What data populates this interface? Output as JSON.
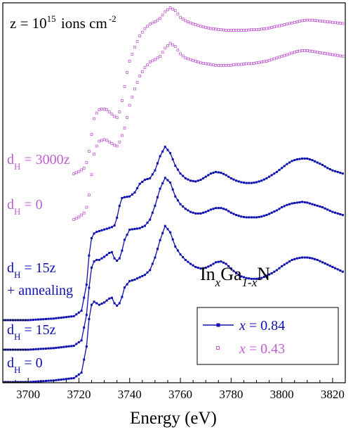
{
  "chart_data": {
    "type": "line",
    "title": "",
    "xlabel": "Energy (eV)",
    "ylabel": "",
    "xlim": [
      3690,
      3825
    ],
    "x_ticks": [
      "3700",
      "3720",
      "3740",
      "3760",
      "3780",
      "3800",
      "3820"
    ],
    "grid": false,
    "annotations": {
      "fluence": {
        "z": "z = 10",
        "exp": "15",
        "unit": " ions cm",
        "unit_exp": "-2"
      },
      "formula": {
        "a": "In",
        "sa": "x",
        "b": "Ga",
        "sb": "1-x",
        "c": "N"
      },
      "labels": [
        {
          "key": "dH3000",
          "pre": "d",
          "sub": "H",
          "post": " = 3000z"
        },
        {
          "key": "dH0b",
          "pre": "d",
          "sub": "H",
          "post": " = 0"
        },
        {
          "key": "dH15a",
          "pre": "d",
          "sub": "H",
          "post": " = 15z"
        },
        {
          "key": "anneal",
          "text": "+ annealing"
        },
        {
          "key": "dH15",
          "pre": "d",
          "sub": "H",
          "post": " = 15z"
        },
        {
          "key": "dH0",
          "pre": "d",
          "sub": "H",
          "post": " = 0"
        }
      ]
    },
    "legend": {
      "placement": "bottom-right",
      "entries": [
        {
          "name": "x = 0.84",
          "var": "x",
          "rest": " = 0.84",
          "color": "#1010b0",
          "marker": "line-square"
        },
        {
          "name": "x = 0.43",
          "var": "x",
          "rest": " = 0.43",
          "color": "#c060d0",
          "marker": "open-square"
        }
      ]
    },
    "series": [
      {
        "name": "dH = 0 (x = 0.84)",
        "color": "#1010b0",
        "group": "x = 0.84",
        "x": [
          3690,
          3700,
          3710,
          3718,
          3721,
          3723,
          3724,
          3725,
          3726,
          3727,
          3728,
          3730,
          3732,
          3733,
          3734,
          3735,
          3736,
          3737,
          3738,
          3740,
          3742,
          3744,
          3746,
          3748,
          3750,
          3752,
          3754,
          3756,
          3758,
          3760,
          3762,
          3764,
          3766,
          3768,
          3770,
          3772,
          3774,
          3776,
          3778,
          3780,
          3782,
          3784,
          3786,
          3788,
          3790,
          3792,
          3794,
          3796,
          3798,
          3800,
          3802,
          3804,
          3806,
          3808,
          3810,
          3812,
          3814,
          3816,
          3818,
          3820,
          3822,
          3824
        ],
        "y": [
          0.0,
          0.0,
          0.02,
          0.05,
          0.12,
          0.45,
          0.8,
          0.98,
          1.02,
          1.0,
          0.98,
          1.01,
          1.06,
          1.07,
          1.0,
          0.97,
          1.0,
          1.08,
          1.2,
          1.28,
          1.3,
          1.33,
          1.36,
          1.42,
          1.58,
          1.8,
          1.98,
          1.9,
          1.72,
          1.62,
          1.55,
          1.5,
          1.46,
          1.44,
          1.45,
          1.48,
          1.52,
          1.53,
          1.5,
          1.44,
          1.38,
          1.34,
          1.32,
          1.31,
          1.31,
          1.32,
          1.35,
          1.38,
          1.42,
          1.47,
          1.51,
          1.55,
          1.57,
          1.58,
          1.58,
          1.57,
          1.55,
          1.52,
          1.49,
          1.46,
          1.43,
          1.4
        ]
      },
      {
        "name": "dH = 15z (x = 0.84)",
        "color": "#1010b0",
        "group": "x = 0.84",
        "x": [
          3690,
          3700,
          3710,
          3718,
          3721,
          3723,
          3724,
          3725,
          3726,
          3727,
          3728,
          3730,
          3732,
          3733,
          3734,
          3735,
          3736,
          3737,
          3738,
          3740,
          3742,
          3744,
          3746,
          3748,
          3750,
          3752,
          3754,
          3756,
          3758,
          3760,
          3762,
          3764,
          3766,
          3768,
          3770,
          3772,
          3774,
          3776,
          3778,
          3780,
          3782,
          3784,
          3786,
          3788,
          3790,
          3792,
          3794,
          3796,
          3798,
          3800,
          3802,
          3804,
          3806,
          3808,
          3810,
          3812,
          3814,
          3816,
          3818,
          3820,
          3822,
          3824
        ],
        "y": [
          0.0,
          0.0,
          0.02,
          0.05,
          0.12,
          0.45,
          0.8,
          1.06,
          1.14,
          1.16,
          1.16,
          1.2,
          1.25,
          1.26,
          1.18,
          1.15,
          1.18,
          1.28,
          1.42,
          1.55,
          1.56,
          1.57,
          1.6,
          1.68,
          1.86,
          2.08,
          2.22,
          2.16,
          1.98,
          1.88,
          1.82,
          1.78,
          1.76,
          1.76,
          1.78,
          1.81,
          1.83,
          1.83,
          1.81,
          1.77,
          1.74,
          1.72,
          1.71,
          1.71,
          1.71,
          1.72,
          1.74,
          1.77,
          1.8,
          1.84,
          1.87,
          1.89,
          1.9,
          1.91,
          1.9,
          1.88,
          1.86,
          1.84,
          1.81,
          1.78,
          1.76,
          1.74
        ]
      },
      {
        "name": "dH = 15z + annealing (x = 0.84)",
        "color": "#1010b0",
        "group": "x = 0.84",
        "x": [
          3690,
          3700,
          3710,
          3718,
          3721,
          3723,
          3724,
          3725,
          3726,
          3727,
          3728,
          3730,
          3732,
          3733,
          3734,
          3735,
          3736,
          3737,
          3738,
          3740,
          3742,
          3744,
          3746,
          3748,
          3750,
          3752,
          3754,
          3756,
          3758,
          3760,
          3762,
          3764,
          3766,
          3768,
          3770,
          3772,
          3774,
          3776,
          3778,
          3780,
          3782,
          3784,
          3786,
          3788,
          3790,
          3792,
          3794,
          3796,
          3798,
          3800,
          3802,
          3804,
          3806,
          3808,
          3810,
          3812,
          3814,
          3816,
          3818,
          3820,
          3822,
          3824
        ],
        "y": [
          0.0,
          0.0,
          0.02,
          0.05,
          0.12,
          0.45,
          0.82,
          1.04,
          1.1,
          1.12,
          1.13,
          1.15,
          1.17,
          1.18,
          1.2,
          1.3,
          1.45,
          1.55,
          1.56,
          1.57,
          1.62,
          1.73,
          1.78,
          1.8,
          1.9,
          2.08,
          2.2,
          2.12,
          1.96,
          1.86,
          1.8,
          1.77,
          1.76,
          1.78,
          1.82,
          1.86,
          1.88,
          1.87,
          1.84,
          1.8,
          1.77,
          1.75,
          1.74,
          1.74,
          1.75,
          1.77,
          1.8,
          1.84,
          1.88,
          1.93,
          1.98,
          2.02,
          2.04,
          2.05,
          2.05,
          2.03,
          2.0,
          1.97,
          1.93,
          1.9,
          1.88,
          1.86
        ]
      },
      {
        "name": "dH = 0 (x = 0.43)",
        "color": "#c060d0",
        "group": "x = 0.43",
        "x": [
          3718,
          3720,
          3722,
          3723,
          3724,
          3725,
          3726,
          3727,
          3728,
          3729,
          3730,
          3731,
          3732,
          3733,
          3734,
          3735,
          3736,
          3737,
          3738,
          3739,
          3740,
          3742,
          3744,
          3746,
          3748,
          3750,
          3752,
          3754,
          3756,
          3758,
          3760,
          3762,
          3764,
          3766,
          3768,
          3770,
          3772,
          3774,
          3776,
          3778,
          3780,
          3782,
          3784,
          3786,
          3788,
          3790,
          3792,
          3794,
          3796,
          3798,
          3800,
          3802,
          3804,
          3806,
          3808,
          3810,
          3812,
          3814,
          3816,
          3818,
          3820,
          3822,
          3824
        ],
        "y": [
          0.0,
          0.03,
          0.08,
          0.15,
          0.3,
          0.55,
          0.8,
          0.9,
          0.96,
          0.97,
          0.98,
          0.97,
          0.95,
          0.93,
          0.91,
          0.9,
          0.95,
          1.03,
          1.12,
          1.25,
          1.4,
          1.6,
          1.76,
          1.86,
          1.93,
          1.96,
          2.0,
          2.1,
          2.16,
          2.12,
          2.03,
          1.98,
          1.96,
          1.94,
          1.92,
          1.91,
          1.9,
          1.89,
          1.89,
          1.89,
          1.89,
          1.9,
          1.9,
          1.91,
          1.91,
          1.92,
          1.93,
          1.94,
          1.96,
          1.98,
          2.0,
          2.02,
          2.04,
          2.06,
          2.07,
          2.07,
          2.06,
          2.05,
          2.04,
          2.03,
          2.02,
          2.01,
          2.0
        ]
      },
      {
        "name": "dH = 3000z (x = 0.43)",
        "color": "#c060d0",
        "group": "x = 0.43",
        "x": [
          3718,
          3720,
          3722,
          3723,
          3724,
          3725,
          3726,
          3727,
          3728,
          3729,
          3730,
          3731,
          3732,
          3733,
          3734,
          3735,
          3736,
          3737,
          3738,
          3739,
          3740,
          3742,
          3744,
          3746,
          3748,
          3750,
          3752,
          3754,
          3756,
          3758,
          3760,
          3762,
          3764,
          3766,
          3768,
          3770,
          3772,
          3774,
          3776,
          3778,
          3780,
          3782,
          3784,
          3786,
          3788,
          3790,
          3792,
          3794,
          3796,
          3798,
          3800,
          3802,
          3804,
          3806,
          3808,
          3810,
          3812,
          3814,
          3816,
          3818,
          3820,
          3822,
          3824
        ],
        "y": [
          0.0,
          0.04,
          0.1,
          0.2,
          0.4,
          0.7,
          0.98,
          1.08,
          1.14,
          1.15,
          1.15,
          1.14,
          1.1,
          1.06,
          1.02,
          1.0,
          1.1,
          1.3,
          1.55,
          1.8,
          2.0,
          2.25,
          2.45,
          2.58,
          2.66,
          2.7,
          2.76,
          2.88,
          2.95,
          2.9,
          2.78,
          2.72,
          2.68,
          2.65,
          2.62,
          2.6,
          2.58,
          2.57,
          2.56,
          2.55,
          2.55,
          2.55,
          2.55,
          2.55,
          2.56,
          2.56,
          2.57,
          2.58,
          2.6,
          2.62,
          2.64,
          2.66,
          2.68,
          2.7,
          2.72,
          2.73,
          2.73,
          2.72,
          2.71,
          2.7,
          2.69,
          2.68,
          2.67
        ]
      }
    ]
  }
}
